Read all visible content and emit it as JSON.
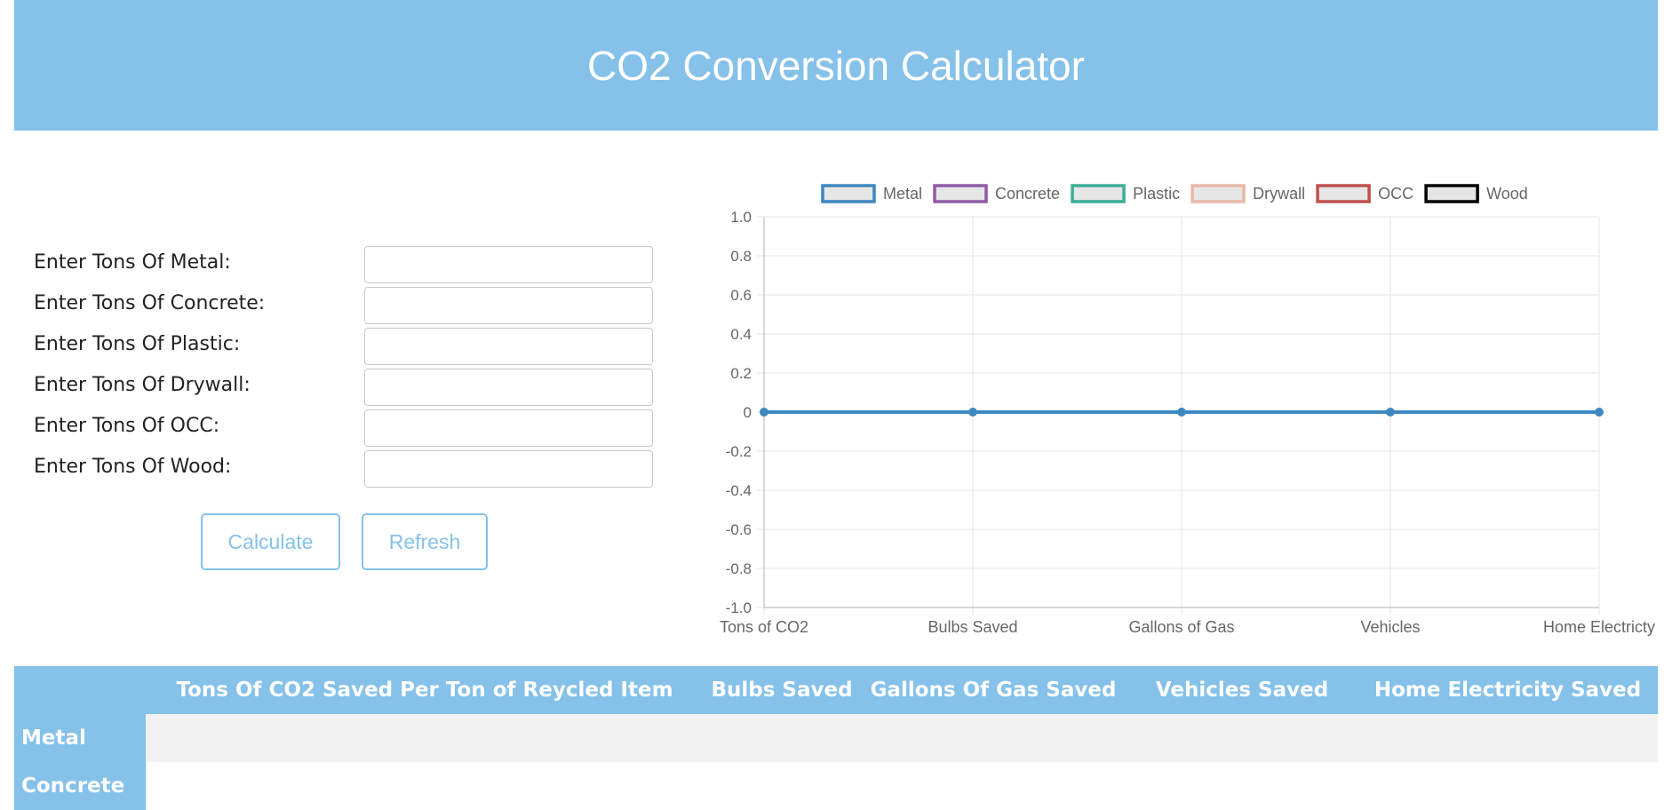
{
  "header": {
    "title": "CO2 Conversion Calculator"
  },
  "form": {
    "fields": [
      {
        "label": "Enter Tons Of Metal:",
        "value": "",
        "placeholder": ""
      },
      {
        "label": "Enter Tons Of Concrete:",
        "value": "",
        "placeholder": ""
      },
      {
        "label": "Enter Tons Of Plastic:",
        "value": "",
        "placeholder": ""
      },
      {
        "label": "Enter Tons Of Drywall:",
        "value": "",
        "placeholder": ""
      },
      {
        "label": "Enter Tons Of OCC:",
        "value": "",
        "placeholder": ""
      },
      {
        "label": "Enter Tons Of Wood:",
        "value": "",
        "placeholder": ""
      }
    ],
    "calculate_label": "Calculate",
    "refresh_label": "Refresh"
  },
  "chart_data": {
    "type": "line",
    "categories": [
      "Tons of CO2",
      "Bulbs Saved",
      "Gallons of Gas",
      "Vehicles",
      "Home Electricty"
    ],
    "series": [
      {
        "name": "Metal",
        "color": "#3e87c0",
        "values": [
          0,
          0,
          0,
          0,
          0
        ]
      },
      {
        "name": "Concrete",
        "color": "#8e5ba6",
        "values": [
          0,
          0,
          0,
          0,
          0
        ]
      },
      {
        "name": "Plastic",
        "color": "#3bae97",
        "values": [
          0,
          0,
          0,
          0,
          0
        ]
      },
      {
        "name": "Drywall",
        "color": "#e8b9a8",
        "values": [
          0,
          0,
          0,
          0,
          0
        ]
      },
      {
        "name": "OCC",
        "color": "#c0504d",
        "values": [
          0,
          0,
          0,
          0,
          0
        ]
      },
      {
        "name": "Wood",
        "color": "#000000",
        "values": [
          0,
          0,
          0,
          0,
          0
        ]
      }
    ],
    "yticks": [
      "1.0",
      "0.8",
      "0.6",
      "0.4",
      "0.2",
      "0",
      "-0.2",
      "-0.4",
      "-0.6",
      "-0.8",
      "-1.0"
    ],
    "ylim": [
      -1,
      1
    ],
    "grid": true,
    "legend": "top",
    "title": "",
    "xlabel": "",
    "ylabel": ""
  },
  "table": {
    "headers": [
      "",
      "Tons Of CO2 Saved Per Ton of Reycled Item",
      "Bulbs Saved",
      "Gallons Of Gas Saved",
      "Vehicles Saved",
      "Home Electricity Saved"
    ],
    "rows": [
      {
        "label": "Metal",
        "cells": [
          "",
          "",
          "",
          "",
          ""
        ]
      },
      {
        "label": "Concrete",
        "cells": [
          "",
          "",
          "",
          "",
          ""
        ]
      }
    ]
  }
}
